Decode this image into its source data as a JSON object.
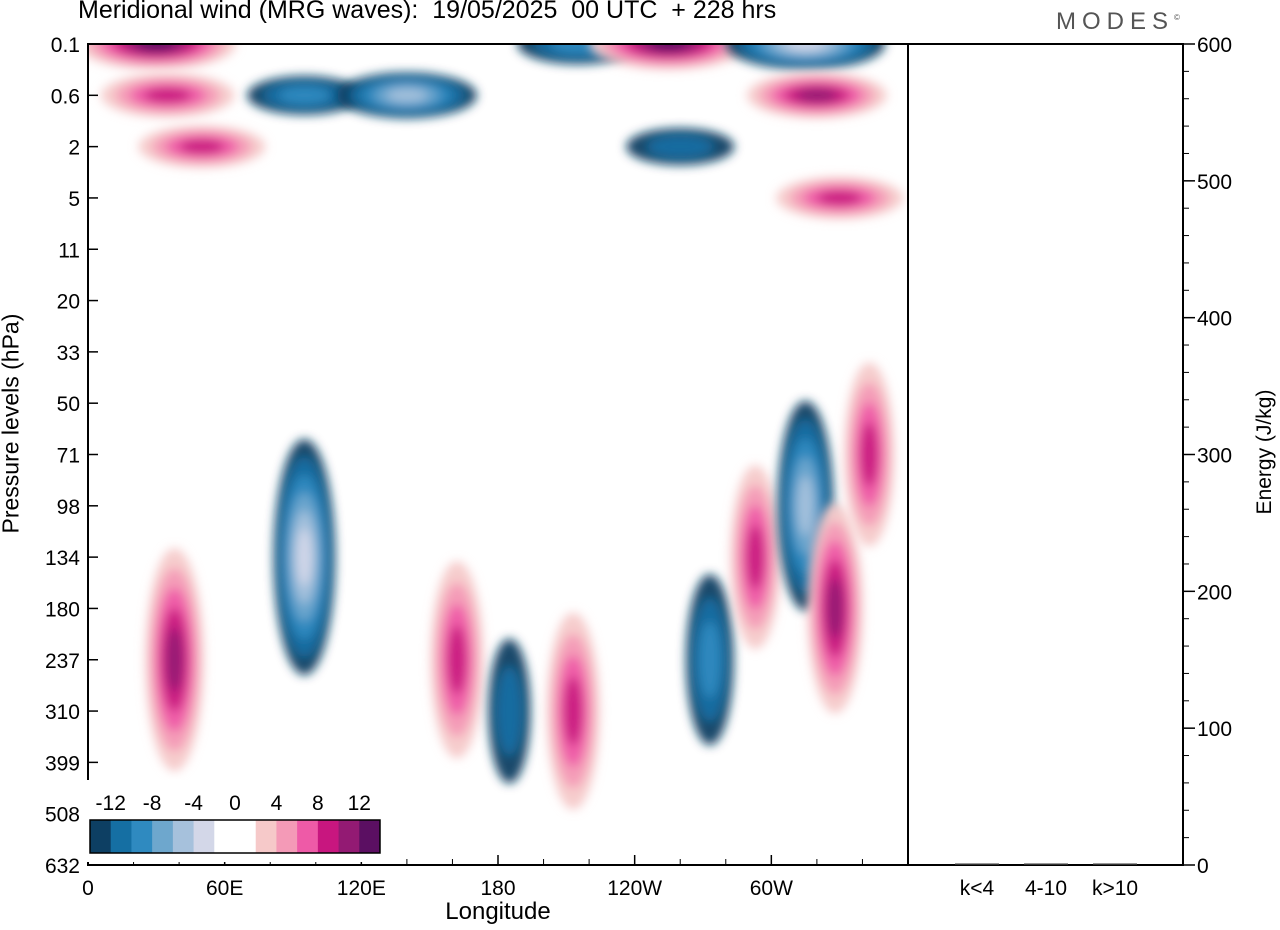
{
  "header": {
    "title": "Meridional wind (MRG waves):  19/05/2025  00 UTC  + 228 hrs",
    "brand": "MODES",
    "brand_mark": "©"
  },
  "axes": {
    "y_left_label": "Pressure levels (hPa)",
    "y_right_label": "Energy (J/kg)",
    "x_label": "Longitude"
  },
  "colors": {
    "neg_scale": [
      "#0d3f63",
      "#156fa3",
      "#2f8ac0",
      "#6ea7cd",
      "#a6c1dc",
      "#d3d7e8"
    ],
    "zero": "#ffffff",
    "pos_scale": [
      "#f6c9c9",
      "#f49ab7",
      "#ee5aa7",
      "#c8167f",
      "#931a73",
      "#5b0f62"
    ]
  },
  "chart_data": [
    {
      "type": "heatmap",
      "title": "Meridional wind (MRG waves):  19/05/2025  00 UTC  + 228 hrs",
      "xlabel": "Longitude",
      "ylabel": "Pressure levels (hPa)",
      "x_ticks": [
        "0",
        "60E",
        "120E",
        "180",
        "120W",
        "60W"
      ],
      "x_tick_degrees": [
        0,
        60,
        120,
        180,
        240,
        300
      ],
      "xlim_degrees": [
        0,
        360
      ],
      "y_ticks": [
        "0.1",
        "0.6",
        "2",
        "5",
        "11",
        "20",
        "33",
        "50",
        "71",
        "98",
        "134",
        "180",
        "237",
        "310",
        "399",
        "508",
        "632"
      ],
      "colorbar": {
        "labels": [
          "-12",
          "-8",
          "-4",
          "0",
          "4",
          "8",
          "12"
        ],
        "levels": [
          -14,
          -12,
          -10,
          -8,
          -6,
          -4,
          -2,
          2,
          4,
          6,
          8,
          10,
          12,
          14
        ]
      },
      "features": [
        {
          "lon": 30,
          "level": "0.1",
          "value": 13
        },
        {
          "lon": 35,
          "level": "0.6",
          "value": 9
        },
        {
          "lon": 50,
          "level": "2",
          "value": 8
        },
        {
          "lon": 95,
          "level": "0.6",
          "value": -6
        },
        {
          "lon": 140,
          "level": "0.6",
          "value": -10
        },
        {
          "lon": 215,
          "level": "0.1",
          "value": -7
        },
        {
          "lon": 255,
          "level": "0.1",
          "value": 13
        },
        {
          "lon": 260,
          "level": "2",
          "value": -5
        },
        {
          "lon": 315,
          "level": "0.1",
          "value": -13
        },
        {
          "lon": 320,
          "level": "0.6",
          "value": 10
        },
        {
          "lon": 330,
          "level": "5",
          "value": 8
        },
        {
          "lon": 38,
          "level": "237",
          "value": 11
        },
        {
          "lon": 95,
          "level": "134",
          "value": -12
        },
        {
          "lon": 162,
          "level": "237",
          "value": 9
        },
        {
          "lon": 185,
          "level": "310",
          "value": -5
        },
        {
          "lon": 213,
          "level": "310",
          "value": 9
        },
        {
          "lon": 273,
          "level": "237",
          "value": -7
        },
        {
          "lon": 293,
          "level": "134",
          "value": 8
        },
        {
          "lon": 315,
          "level": "98",
          "value": -10
        },
        {
          "lon": 328,
          "level": "180",
          "value": 10
        },
        {
          "lon": 343,
          "level": "71",
          "value": 8
        }
      ]
    },
    {
      "type": "bar",
      "ylabel": "Energy (J/kg)",
      "ylim": [
        0,
        600
      ],
      "y_ticks": [
        "0",
        "100",
        "200",
        "300",
        "400",
        "500",
        "600"
      ],
      "categories": [
        "k<4",
        "4-10",
        "k>10"
      ],
      "values": [
        0.5,
        1,
        0.3
      ]
    }
  ]
}
